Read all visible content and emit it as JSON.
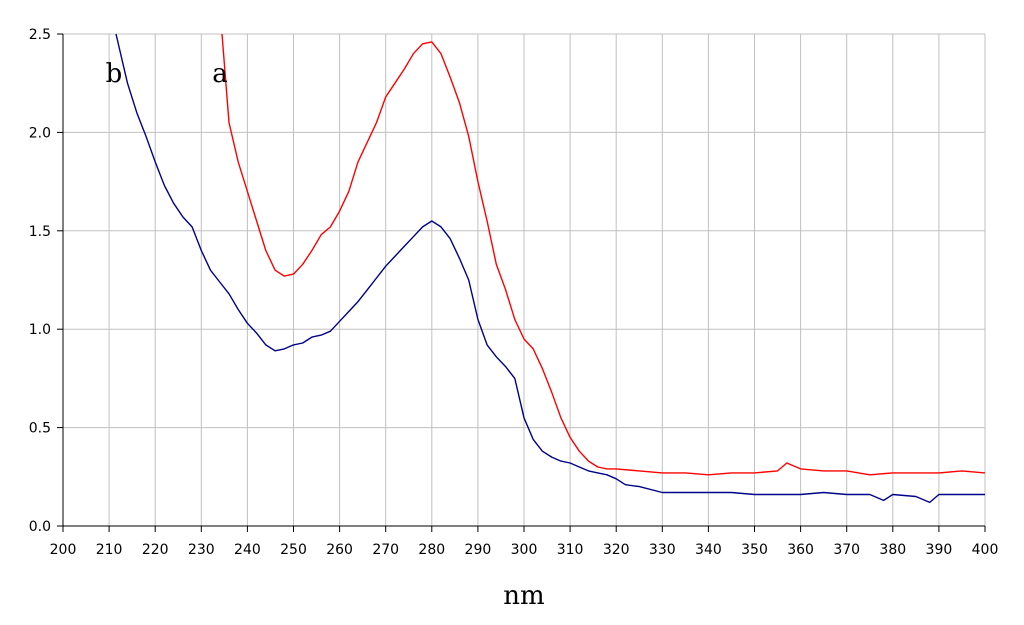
{
  "chart_data": {
    "type": "line",
    "title": "",
    "xlabel": "nm",
    "ylabel": "",
    "xlim": [
      200,
      400
    ],
    "ylim": [
      0.0,
      2.5
    ],
    "grid": true,
    "x_ticks": [
      "200",
      "210",
      "220",
      "230",
      "240",
      "250",
      "260",
      "270",
      "280",
      "290",
      "300",
      "310",
      "320",
      "330",
      "340",
      "350",
      "360",
      "370",
      "380",
      "390",
      "400"
    ],
    "y_ticks": [
      "0.0",
      "0.5",
      "1.0",
      "1.5",
      "2.0",
      "2.5"
    ],
    "series": [
      {
        "label": "a",
        "color": "#ff0000",
        "x": [
          234.5,
          236,
          238,
          240,
          242,
          244,
          246,
          248,
          250,
          252,
          254,
          256,
          258,
          260,
          262,
          264,
          266,
          268,
          270,
          272,
          274,
          276,
          278,
          280,
          282,
          284,
          286,
          288,
          290,
          292,
          294,
          296,
          298,
          300,
          302,
          304,
          306,
          308,
          310,
          312,
          314,
          316,
          318,
          320,
          325,
          330,
          335,
          340,
          345,
          350,
          355,
          357,
          360,
          365,
          370,
          375,
          380,
          385,
          390,
          395,
          400
        ],
        "y": [
          2.5,
          2.05,
          1.85,
          1.7,
          1.55,
          1.4,
          1.3,
          1.27,
          1.28,
          1.33,
          1.4,
          1.48,
          1.52,
          1.6,
          1.7,
          1.85,
          1.95,
          2.05,
          2.18,
          2.25,
          2.32,
          2.4,
          2.45,
          2.46,
          2.4,
          2.28,
          2.15,
          1.98,
          1.75,
          1.55,
          1.33,
          1.2,
          1.05,
          0.95,
          0.9,
          0.8,
          0.68,
          0.55,
          0.45,
          0.38,
          0.33,
          0.3,
          0.29,
          0.29,
          0.28,
          0.27,
          0.27,
          0.26,
          0.27,
          0.27,
          0.28,
          0.32,
          0.29,
          0.28,
          0.28,
          0.26,
          0.27,
          0.27,
          0.27,
          0.28,
          0.27
        ]
      },
      {
        "label": "b",
        "color": "#00008b",
        "x": [
          211.5,
          214,
          216,
          218,
          220,
          222,
          224,
          226,
          228,
          230,
          232,
          234,
          236,
          238,
          240,
          242,
          244,
          246,
          248,
          250,
          252,
          254,
          256,
          258,
          260,
          262,
          264,
          266,
          268,
          270,
          272,
          274,
          276,
          278,
          280,
          282,
          284,
          286,
          288,
          290,
          292,
          294,
          296,
          298,
          300,
          302,
          304,
          306,
          308,
          310,
          312,
          314,
          316,
          318,
          320,
          322,
          325,
          330,
          335,
          340,
          345,
          350,
          355,
          360,
          365,
          370,
          375,
          378,
          380,
          385,
          388,
          390,
          395,
          400
        ],
        "y": [
          2.5,
          2.25,
          2.1,
          1.98,
          1.85,
          1.73,
          1.64,
          1.57,
          1.52,
          1.4,
          1.3,
          1.24,
          1.18,
          1.1,
          1.03,
          0.98,
          0.92,
          0.89,
          0.9,
          0.92,
          0.93,
          0.96,
          0.97,
          0.99,
          1.04,
          1.09,
          1.14,
          1.2,
          1.26,
          1.32,
          1.37,
          1.42,
          1.47,
          1.52,
          1.55,
          1.52,
          1.46,
          1.36,
          1.25,
          1.05,
          0.92,
          0.86,
          0.81,
          0.75,
          0.55,
          0.44,
          0.38,
          0.35,
          0.33,
          0.32,
          0.3,
          0.28,
          0.27,
          0.26,
          0.24,
          0.21,
          0.2,
          0.17,
          0.17,
          0.17,
          0.17,
          0.16,
          0.16,
          0.16,
          0.17,
          0.16,
          0.16,
          0.13,
          0.16,
          0.15,
          0.12,
          0.16,
          0.16,
          0.16
        ]
      }
    ]
  }
}
